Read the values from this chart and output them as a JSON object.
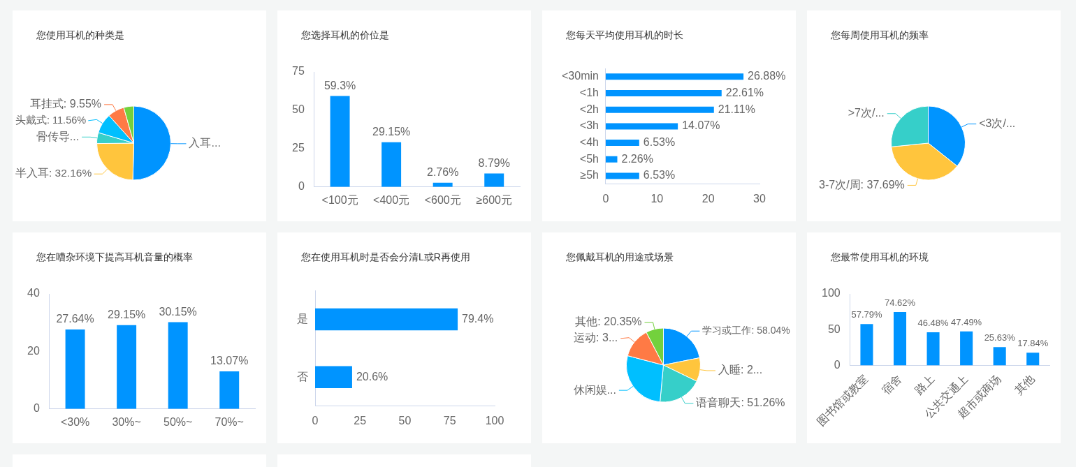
{
  "chart_data": [
    {
      "type": "pie",
      "title": "您使用耳机的种类是",
      "categories": [
        "入耳...",
        "半入耳",
        "骨传导...",
        "头戴式",
        "耳挂式",
        null
      ],
      "values": [
        66.5,
        32.16,
        6.3,
        11.56,
        9.55,
        5.8
      ],
      "colors": [
        "#0094ff",
        "#ffc53d",
        "#36cfc9",
        "#00bfff",
        "#ff7a45",
        "#73d13d"
      ],
      "value_labels": [
        null,
        "32.16%",
        null,
        "11.56%",
        "9.55%",
        null
      ]
    },
    {
      "type": "bar",
      "title": "您选择耳机的价位是",
      "categories": [
        "<100元",
        "<400元",
        "<600元",
        "≥600元"
      ],
      "values": [
        59.3,
        29.15,
        2.76,
        8.79
      ],
      "color": "#0094ff",
      "ylim": [
        0,
        75
      ],
      "yticks": [
        0,
        25,
        50,
        75
      ],
      "value_labels": [
        "59.3%",
        "29.15%",
        "2.76%",
        "8.79%"
      ]
    },
    {
      "type": "bar",
      "orientation": "horizontal",
      "title": "您每天平均使用耳机的时长",
      "categories": [
        "<30min",
        "<1h",
        "<2h",
        "<3h",
        "<4h",
        "<5h",
        "≥5h"
      ],
      "values": [
        26.88,
        22.61,
        21.11,
        14.07,
        6.53,
        2.26,
        6.53
      ],
      "color": "#0094ff",
      "xlim": [
        0,
        30
      ],
      "xticks": [
        0,
        10,
        20,
        30
      ],
      "value_labels": [
        "26.88%",
        "22.61%",
        "21.11%",
        "14.07%",
        "6.53%",
        "2.26%",
        "6.53%"
      ]
    },
    {
      "type": "pie",
      "title": "您每周使用耳机的频率",
      "categories": [
        "<3次/...",
        "3-7次/周",
        ">7次/..."
      ],
      "values": [
        35.7,
        37.69,
        26.61
      ],
      "colors": [
        "#0094ff",
        "#ffc53d",
        "#36cfc9"
      ],
      "value_labels": [
        null,
        "37.69%",
        null
      ]
    },
    {
      "type": "bar",
      "title": "您在嘈杂环境下提高耳机音量的概率",
      "categories": [
        "<30%",
        "30%~",
        "50%~",
        "70%~"
      ],
      "values": [
        27.64,
        29.15,
        30.15,
        13.07
      ],
      "color": "#0094ff",
      "ylim": [
        0,
        40
      ],
      "yticks": [
        0,
        20,
        40
      ],
      "value_labels": [
        "27.64%",
        "29.15%",
        "30.15%",
        "13.07%"
      ]
    },
    {
      "type": "bar",
      "orientation": "horizontal",
      "title": "您在使用耳机时是否会分清L或R再使用",
      "categories": [
        "是",
        "否"
      ],
      "values": [
        79.4,
        20.6
      ],
      "color": "#0094ff",
      "xlim": [
        0,
        100
      ],
      "xticks": [
        0,
        25,
        50,
        75,
        100
      ],
      "value_labels": [
        "79.4%",
        "20.6%"
      ]
    },
    {
      "type": "pie",
      "title": "您佩戴耳机的用途或场景",
      "categories": [
        "学习或工作",
        "入睡",
        "语音聊天",
        "休闲娱...",
        "运动",
        "其他"
      ],
      "values": [
        58.04,
        27.6,
        51.26,
        73.4,
        35.3,
        20.35
      ],
      "colors": [
        "#0094ff",
        "#ffc53d",
        "#36cfc9",
        "#00bfff",
        "#ff7a45",
        "#73d13d"
      ],
      "value_labels": [
        "58.04%",
        "2...",
        "51.26%",
        null,
        "3...",
        "20.35%"
      ]
    },
    {
      "type": "bar",
      "title": "您最常使用耳机的环境",
      "categories": [
        "图书馆或教室",
        "宿舍",
        "路上",
        "公共交通上",
        "超市或商场",
        "其他"
      ],
      "values": [
        57.79,
        74.62,
        46.48,
        47.49,
        25.63,
        17.84
      ],
      "color": "#0094ff",
      "ylim": [
        0,
        100
      ],
      "yticks": [
        0,
        50,
        100
      ],
      "value_labels": [
        "57.79%",
        "74.62%",
        "46.48%",
        "47.49%",
        "25.63%",
        "17.84%"
      ]
    }
  ]
}
